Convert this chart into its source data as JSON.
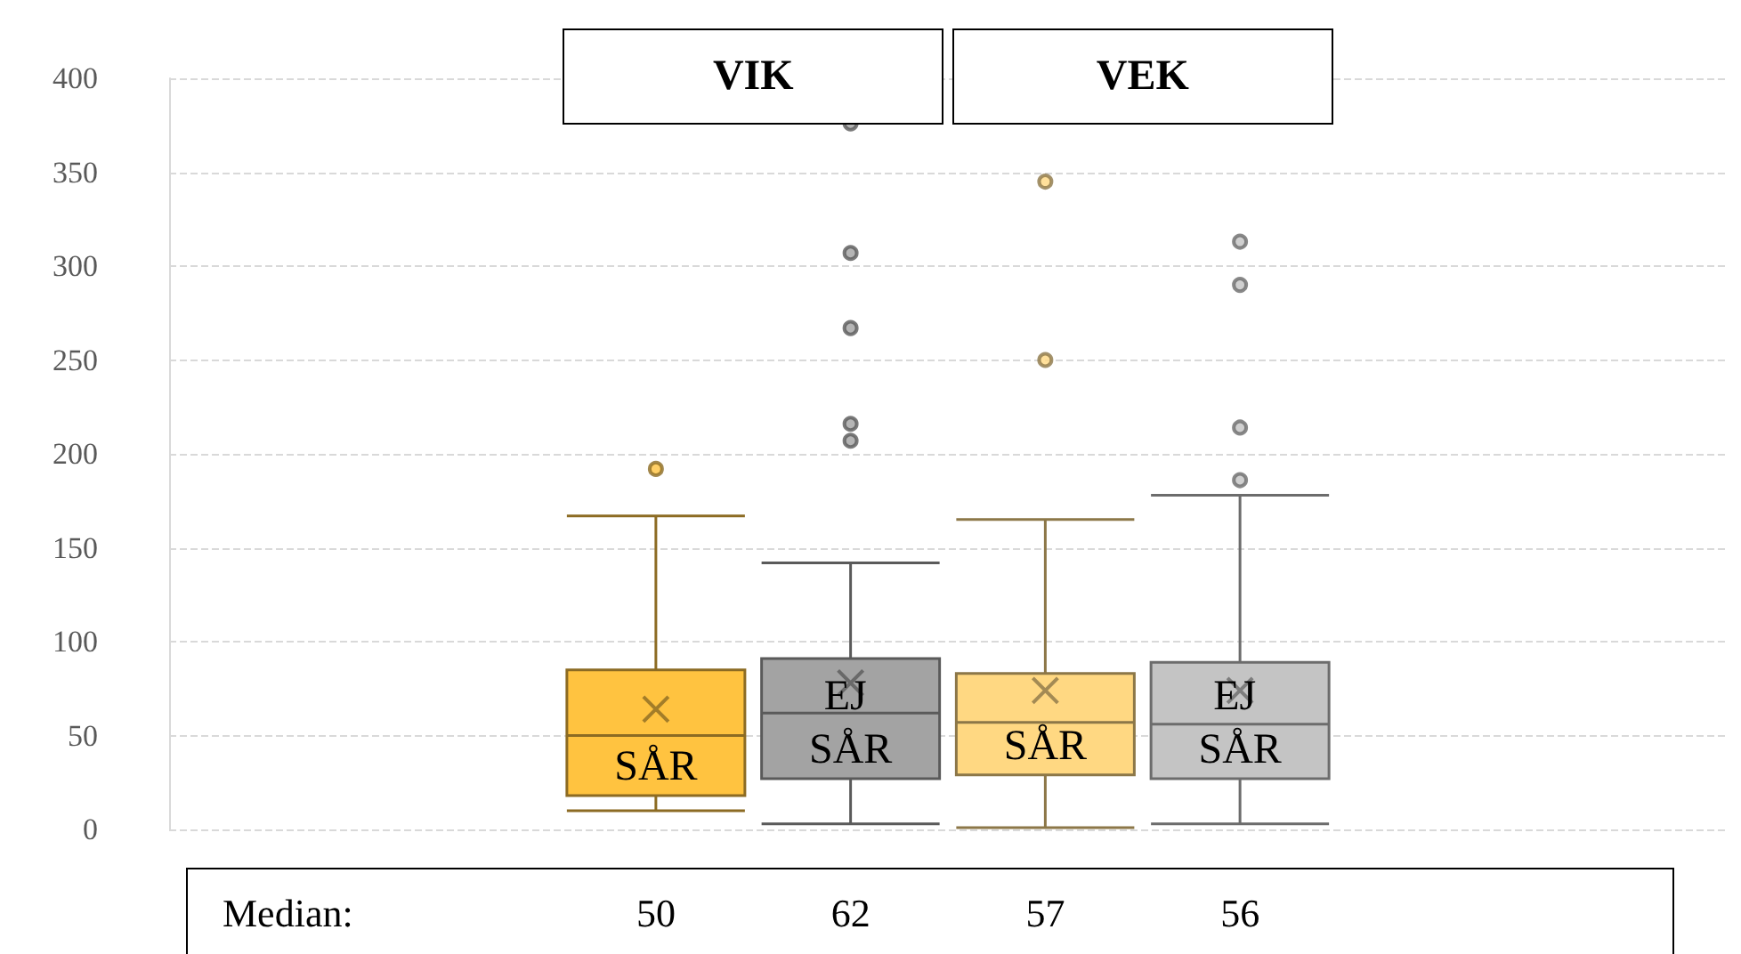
{
  "chart_data": {
    "type": "box",
    "categories": [
      null,
      null,
      "SÅR",
      "EJ SÅR",
      "SÅR",
      "EJ SÅR",
      null,
      null
    ],
    "series": [
      {
        "color": "#ffc340",
        "value_labels": [
          null,
          null,
          "50",
          null,
          null,
          null,
          null,
          null
        ],
        "boxes": [
          null,
          null,
          {
            "low": 10,
            "q1": 18,
            "median": 50,
            "q3": 85,
            "high": 167,
            "mean": 64,
            "outliers": [
              192
            ]
          },
          null,
          null,
          null,
          null,
          null
        ]
      },
      {
        "color": "#a3a3a3",
        "value_labels": [
          null,
          null,
          null,
          "62",
          null,
          null,
          null,
          null
        ],
        "boxes": [
          null,
          null,
          null,
          {
            "low": 3,
            "q1": 27,
            "median": 62,
            "q3": 91,
            "high": 142,
            "mean": 78,
            "outliers": [
              207,
              216,
              267,
              307,
              376
            ]
          },
          null,
          null,
          null,
          null
        ]
      },
      {
        "color": "#ffd882",
        "value_labels": [
          null,
          null,
          null,
          null,
          "57",
          null,
          null,
          null
        ],
        "boxes": [
          null,
          null,
          null,
          null,
          {
            "low": 1,
            "q1": 29,
            "median": 57,
            "q3": 83,
            "high": 165,
            "mean": 74,
            "outliers": [
              250,
              345
            ]
          },
          null,
          null,
          null
        ]
      },
      {
        "color": "#c4c4c4",
        "value_labels": [
          null,
          null,
          null,
          null,
          null,
          "56",
          null,
          null
        ],
        "boxes": [
          null,
          null,
          null,
          null,
          null,
          {
            "low": 3,
            "q1": 27,
            "median": 56,
            "q3": 89,
            "high": 178,
            "mean": 74,
            "outliers": [
              186,
              214,
              290,
              313
            ]
          },
          null,
          null
        ]
      }
    ],
    "ylim": [
      0,
      400
    ],
    "yticks": [
      0,
      50,
      100,
      150,
      200,
      250,
      300,
      350,
      400
    ],
    "grid": "y",
    "annotations": [
      "VIK",
      "VEK",
      "Median:"
    ]
  }
}
